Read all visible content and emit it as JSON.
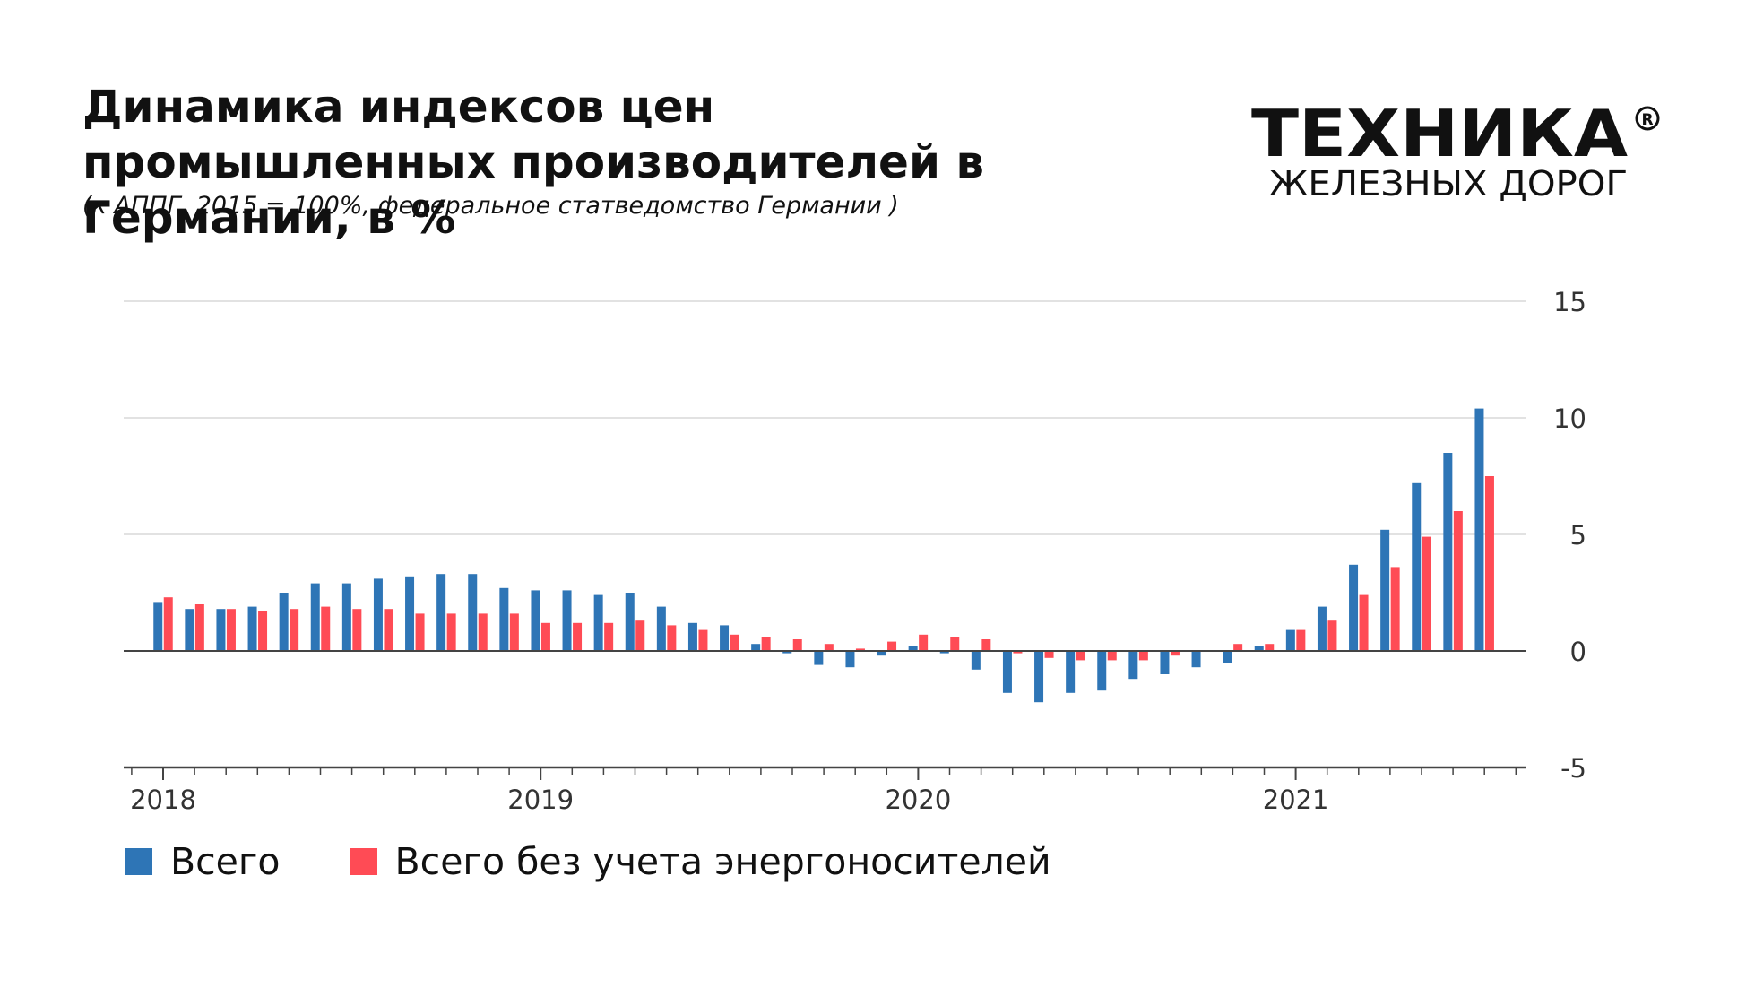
{
  "header": {
    "title": "Динамика индексов цен промышленных производителей в Германии, в %",
    "subtitle": "(к АППГ, 2015 = 100%, федеральное статведомство Германии )"
  },
  "logo": {
    "main_text": "ТЕХНИКА",
    "sub_text": "ЖЕЛЕЗНЫХ ДОРОГ",
    "mark": "registered-mark-icon"
  },
  "legend": {
    "items": [
      {
        "label": "Всего",
        "color": "#2e75b6"
      },
      {
        "label": "Всего без учета энергоносителей",
        "color": "#ff4b55"
      }
    ]
  },
  "chart_data": {
    "type": "bar",
    "title": "Динамика индексов цен промышленных производителей в Германии, в %",
    "subtitle": "(к АППГ, 2015 = 100%, федеральное статведомство Германии )",
    "xlabel": "",
    "ylabel": "",
    "ylim": [
      -5,
      15
    ],
    "yticks": [
      15,
      10,
      5,
      0,
      -5
    ],
    "y_axis_position": "right",
    "x_tick_labels": [
      "2018",
      "2019",
      "2020",
      "2021"
    ],
    "grid": true,
    "legend_position": "bottom-left",
    "x": [
      "2018-01",
      "2018-02",
      "2018-03",
      "2018-04",
      "2018-05",
      "2018-06",
      "2018-07",
      "2018-08",
      "2018-09",
      "2018-10",
      "2018-11",
      "2018-12",
      "2019-01",
      "2019-02",
      "2019-03",
      "2019-04",
      "2019-05",
      "2019-06",
      "2019-07",
      "2019-08",
      "2019-09",
      "2019-10",
      "2019-11",
      "2019-12",
      "2020-01",
      "2020-02",
      "2020-03",
      "2020-04",
      "2020-05",
      "2020-06",
      "2020-07",
      "2020-08",
      "2020-09",
      "2020-10",
      "2020-11",
      "2020-12",
      "2021-01",
      "2021-02",
      "2021-03",
      "2021-04",
      "2021-05",
      "2021-06",
      "2021-07"
    ],
    "series": [
      {
        "name": "Всего",
        "color": "#2e75b6",
        "values": [
          2.1,
          1.8,
          1.8,
          1.9,
          2.5,
          2.9,
          2.9,
          3.1,
          3.2,
          3.3,
          3.3,
          2.7,
          2.6,
          2.6,
          2.4,
          2.5,
          1.9,
          1.2,
          1.1,
          0.3,
          -0.1,
          -0.6,
          -0.7,
          -0.2,
          0.2,
          -0.1,
          -0.8,
          -1.8,
          -2.2,
          -1.8,
          -1.7,
          -1.2,
          -1.0,
          -0.7,
          -0.5,
          0.2,
          0.9,
          1.9,
          3.7,
          5.2,
          7.2,
          8.5,
          10.4
        ]
      },
      {
        "name": "Всего без учета энергоносителей",
        "color": "#ff4b55",
        "values": [
          2.3,
          2.0,
          1.8,
          1.7,
          1.8,
          1.9,
          1.8,
          1.8,
          1.6,
          1.6,
          1.6,
          1.6,
          1.2,
          1.2,
          1.2,
          1.3,
          1.1,
          0.9,
          0.7,
          0.6,
          0.5,
          0.3,
          0.1,
          0.4,
          0.7,
          0.6,
          0.5,
          -0.1,
          -0.3,
          -0.4,
          -0.4,
          -0.4,
          -0.2,
          0.0,
          0.3,
          0.3,
          0.9,
          1.3,
          2.4,
          3.6,
          4.9,
          6.0,
          7.5
        ]
      }
    ]
  }
}
